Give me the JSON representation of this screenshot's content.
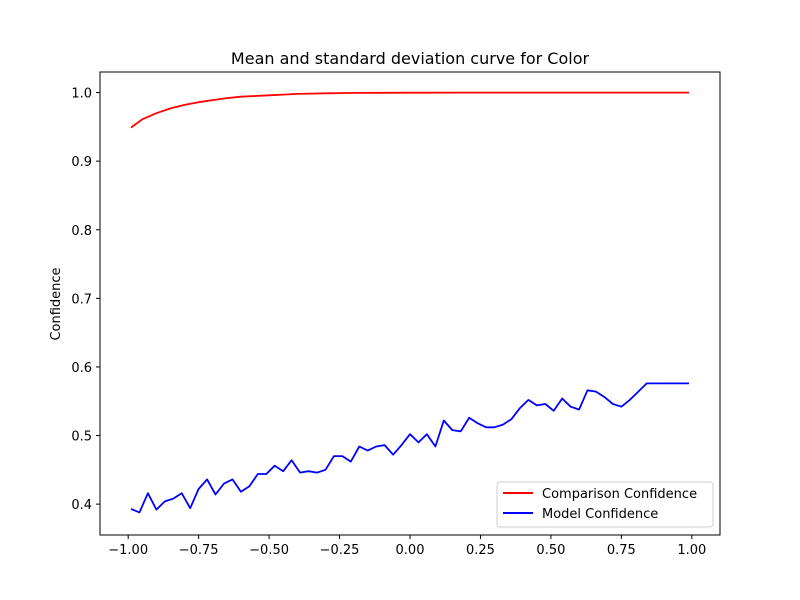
{
  "chart_data": {
    "type": "line",
    "title": "Mean and standard deviation curve for Color",
    "xlabel": "",
    "ylabel": "Confidence",
    "xlim": [
      -1.1,
      1.1
    ],
    "ylim": [
      0.355,
      1.03
    ],
    "xticks": [
      -1.0,
      -0.75,
      -0.5,
      -0.25,
      0.0,
      0.25,
      0.5,
      0.75,
      1.0
    ],
    "xtick_labels": [
      "−1.00",
      "−0.75",
      "−0.50",
      "−0.25",
      "0.00",
      "0.25",
      "0.50",
      "0.75",
      "1.00"
    ],
    "yticks": [
      0.4,
      0.5,
      0.6,
      0.7,
      0.8,
      0.9,
      1.0
    ],
    "ytick_labels": [
      "0.4",
      "0.5",
      "0.6",
      "0.7",
      "0.8",
      "0.9",
      "1.0"
    ],
    "grid": false,
    "legend_position": "lower-right",
    "series": [
      {
        "name": "Comparison Confidence",
        "color": "#ff0000",
        "x": [
          -0.99,
          -0.95,
          -0.9,
          -0.85,
          -0.8,
          -0.75,
          -0.7,
          -0.65,
          -0.6,
          -0.55,
          -0.5,
          -0.45,
          -0.4,
          -0.35,
          -0.3,
          -0.25,
          -0.2,
          -0.1,
          0.0,
          0.2,
          0.4,
          0.6,
          0.8,
          0.99
        ],
        "values": [
          0.949,
          0.961,
          0.97,
          0.977,
          0.982,
          0.986,
          0.989,
          0.992,
          0.994,
          0.995,
          0.996,
          0.997,
          0.998,
          0.9985,
          0.999,
          0.9993,
          0.9995,
          0.9997,
          0.9998,
          0.9999,
          1.0,
          1.0,
          1.0,
          1.0
        ]
      },
      {
        "name": "Model Confidence",
        "color": "#0000ff",
        "x": [
          -0.99,
          -0.96,
          -0.93,
          -0.9,
          -0.87,
          -0.84,
          -0.81,
          -0.78,
          -0.75,
          -0.72,
          -0.69,
          -0.66,
          -0.63,
          -0.6,
          -0.57,
          -0.54,
          -0.51,
          -0.48,
          -0.45,
          -0.42,
          -0.39,
          -0.36,
          -0.33,
          -0.3,
          -0.27,
          -0.24,
          -0.21,
          -0.18,
          -0.15,
          -0.12,
          -0.09,
          -0.06,
          -0.03,
          0.0,
          0.03,
          0.06,
          0.09,
          0.12,
          0.15,
          0.18,
          0.21,
          0.24,
          0.27,
          0.3,
          0.33,
          0.36,
          0.39,
          0.42,
          0.45,
          0.48,
          0.51,
          0.54,
          0.57,
          0.6,
          0.63,
          0.66,
          0.69,
          0.72,
          0.75,
          0.78,
          0.81,
          0.84,
          0.87,
          0.9,
          0.93,
          0.96,
          0.99
        ],
        "values": [
          0.393,
          0.388,
          0.416,
          0.392,
          0.404,
          0.408,
          0.416,
          0.394,
          0.422,
          0.436,
          0.414,
          0.43,
          0.436,
          0.418,
          0.426,
          0.444,
          0.444,
          0.456,
          0.448,
          0.464,
          0.446,
          0.448,
          0.446,
          0.45,
          0.47,
          0.47,
          0.462,
          0.484,
          0.478,
          0.484,
          0.486,
          0.472,
          0.486,
          0.502,
          0.49,
          0.502,
          0.484,
          0.522,
          0.508,
          0.506,
          0.526,
          0.518,
          0.512,
          0.512,
          0.516,
          0.524,
          0.54,
          0.552,
          0.544,
          0.546,
          0.536,
          0.554,
          0.542,
          0.538,
          0.566,
          0.564,
          0.556,
          0.546,
          0.542,
          0.552,
          0.564,
          0.576,
          0.576,
          0.576,
          0.576,
          0.576,
          0.576
        ]
      }
    ]
  }
}
